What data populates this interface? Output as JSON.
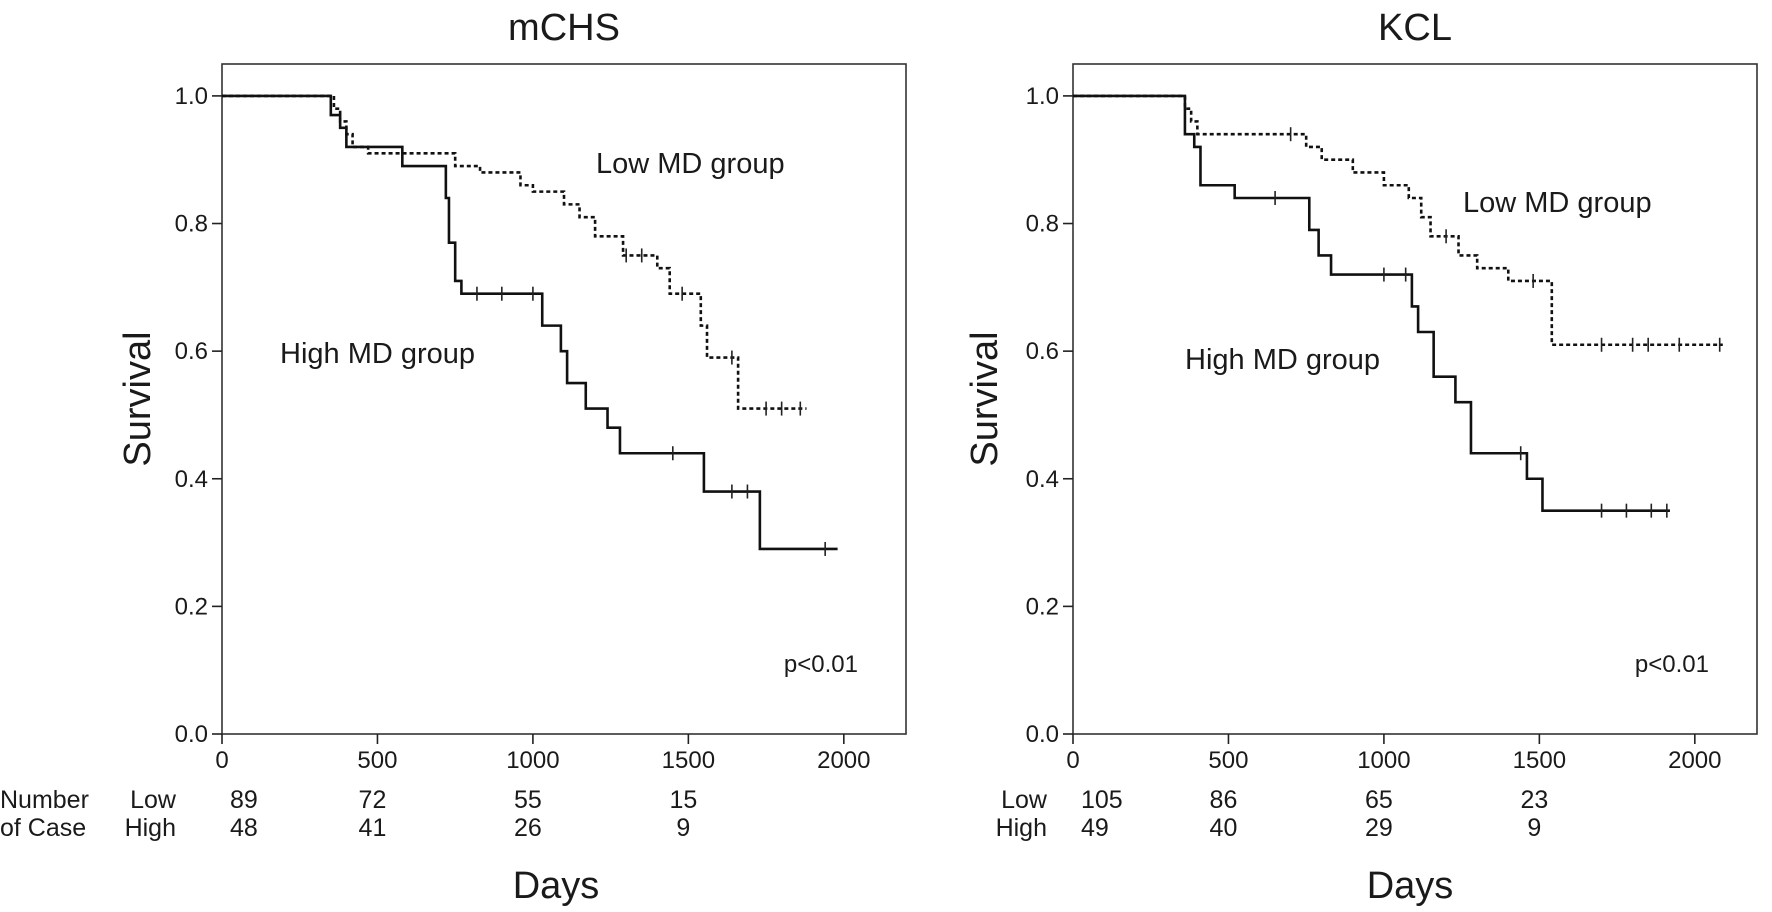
{
  "chart_data": [
    {
      "type": "line",
      "subtype": "kaplan-meier",
      "title": "mCHS",
      "xlabel": "Days",
      "ylabel": "Survival",
      "xlim": [
        0,
        2200
      ],
      "ylim": [
        0,
        1.05
      ],
      "x_ticks": [
        0,
        500,
        1000,
        1500,
        2000
      ],
      "y_ticks": [
        "0.0",
        "0.2",
        "0.4",
        "0.6",
        "0.8",
        "1.0"
      ],
      "p_value": "p<0.01",
      "series": [
        {
          "name": "Low MD group",
          "label": "Low MD group",
          "style": "dashed",
          "steps": [
            [
              0,
              1.0
            ],
            [
              360,
              0.98
            ],
            [
              380,
              0.96
            ],
            [
              400,
              0.94
            ],
            [
              420,
              0.92
            ],
            [
              470,
              0.91
            ],
            [
              750,
              0.89
            ],
            [
              830,
              0.88
            ],
            [
              960,
              0.86
            ],
            [
              1000,
              0.85
            ],
            [
              1100,
              0.83
            ],
            [
              1150,
              0.81
            ],
            [
              1200,
              0.78
            ],
            [
              1290,
              0.75
            ],
            [
              1400,
              0.73
            ],
            [
              1440,
              0.69
            ],
            [
              1540,
              0.64
            ],
            [
              1560,
              0.59
            ],
            [
              1660,
              0.51
            ],
            [
              1880,
              0.51
            ]
          ],
          "censored": [
            [
              1300,
              0.75
            ],
            [
              1350,
              0.75
            ],
            [
              1480,
              0.69
            ],
            [
              1640,
              0.59
            ],
            [
              1750,
              0.51
            ],
            [
              1800,
              0.51
            ],
            [
              1860,
              0.51
            ]
          ]
        },
        {
          "name": "High MD group",
          "label": "High MD group",
          "style": "solid",
          "steps": [
            [
              0,
              1.0
            ],
            [
              350,
              0.97
            ],
            [
              380,
              0.95
            ],
            [
              400,
              0.92
            ],
            [
              580,
              0.89
            ],
            [
              720,
              0.84
            ],
            [
              730,
              0.77
            ],
            [
              750,
              0.71
            ],
            [
              770,
              0.69
            ],
            [
              1030,
              0.64
            ],
            [
              1090,
              0.6
            ],
            [
              1110,
              0.55
            ],
            [
              1170,
              0.51
            ],
            [
              1240,
              0.48
            ],
            [
              1280,
              0.44
            ],
            [
              1550,
              0.38
            ],
            [
              1730,
              0.29
            ],
            [
              1980,
              0.29
            ]
          ],
          "censored": [
            [
              820,
              0.69
            ],
            [
              900,
              0.69
            ],
            [
              1000,
              0.69
            ],
            [
              1450,
              0.44
            ],
            [
              1640,
              0.38
            ],
            [
              1690,
              0.38
            ],
            [
              1940,
              0.29
            ]
          ]
        }
      ],
      "risk_table": {
        "header": [
          "Number",
          "of Case"
        ],
        "rows": [
          {
            "group": "Low",
            "values": [
              "89",
              "72",
              "55",
              "15"
            ]
          },
          {
            "group": "High",
            "values": [
              "48",
              "41",
              "26",
              "9"
            ]
          }
        ],
        "x": [
          0,
          500,
          1000,
          1500
        ]
      }
    },
    {
      "type": "line",
      "subtype": "kaplan-meier",
      "title": "KCL",
      "xlabel": "Days",
      "ylabel": "Survival",
      "xlim": [
        0,
        2200
      ],
      "ylim": [
        0,
        1.05
      ],
      "x_ticks": [
        0,
        500,
        1000,
        1500,
        2000
      ],
      "y_ticks": [
        "0.0",
        "0.2",
        "0.4",
        "0.6",
        "0.8",
        "1.0"
      ],
      "p_value": "p<0.01",
      "series": [
        {
          "name": "Low MD group",
          "label": "Low MD group",
          "style": "dashed",
          "steps": [
            [
              0,
              1.0
            ],
            [
              360,
              0.98
            ],
            [
              380,
              0.96
            ],
            [
              400,
              0.94
            ],
            [
              750,
              0.92
            ],
            [
              800,
              0.9
            ],
            [
              900,
              0.88
            ],
            [
              1000,
              0.86
            ],
            [
              1080,
              0.84
            ],
            [
              1120,
              0.81
            ],
            [
              1150,
              0.78
            ],
            [
              1240,
              0.75
            ],
            [
              1300,
              0.73
            ],
            [
              1400,
              0.71
            ],
            [
              1540,
              0.61
            ],
            [
              2090,
              0.61
            ]
          ],
          "censored": [
            [
              700,
              0.94
            ],
            [
              1200,
              0.78
            ],
            [
              1480,
              0.71
            ],
            [
              1700,
              0.61
            ],
            [
              1800,
              0.61
            ],
            [
              1850,
              0.61
            ],
            [
              1950,
              0.61
            ],
            [
              2080,
              0.61
            ]
          ]
        },
        {
          "name": "High MD group",
          "label": "High MD group",
          "style": "solid",
          "steps": [
            [
              0,
              1.0
            ],
            [
              360,
              0.94
            ],
            [
              390,
              0.92
            ],
            [
              410,
              0.86
            ],
            [
              520,
              0.84
            ],
            [
              760,
              0.79
            ],
            [
              790,
              0.75
            ],
            [
              830,
              0.72
            ],
            [
              1090,
              0.67
            ],
            [
              1110,
              0.63
            ],
            [
              1160,
              0.56
            ],
            [
              1230,
              0.52
            ],
            [
              1280,
              0.44
            ],
            [
              1460,
              0.4
            ],
            [
              1510,
              0.35
            ],
            [
              1920,
              0.35
            ]
          ],
          "censored": [
            [
              650,
              0.84
            ],
            [
              1000,
              0.72
            ],
            [
              1070,
              0.72
            ],
            [
              1440,
              0.44
            ],
            [
              1700,
              0.35
            ],
            [
              1780,
              0.35
            ],
            [
              1860,
              0.35
            ],
            [
              1910,
              0.35
            ]
          ]
        }
      ],
      "risk_table": {
        "header": [],
        "rows": [
          {
            "group": "Low",
            "values": [
              "105",
              "86",
              "65",
              "23"
            ]
          },
          {
            "group": "High",
            "values": [
              "49",
              "40",
              "29",
              "9"
            ]
          }
        ],
        "x": [
          0,
          500,
          1000,
          1500
        ]
      }
    }
  ]
}
